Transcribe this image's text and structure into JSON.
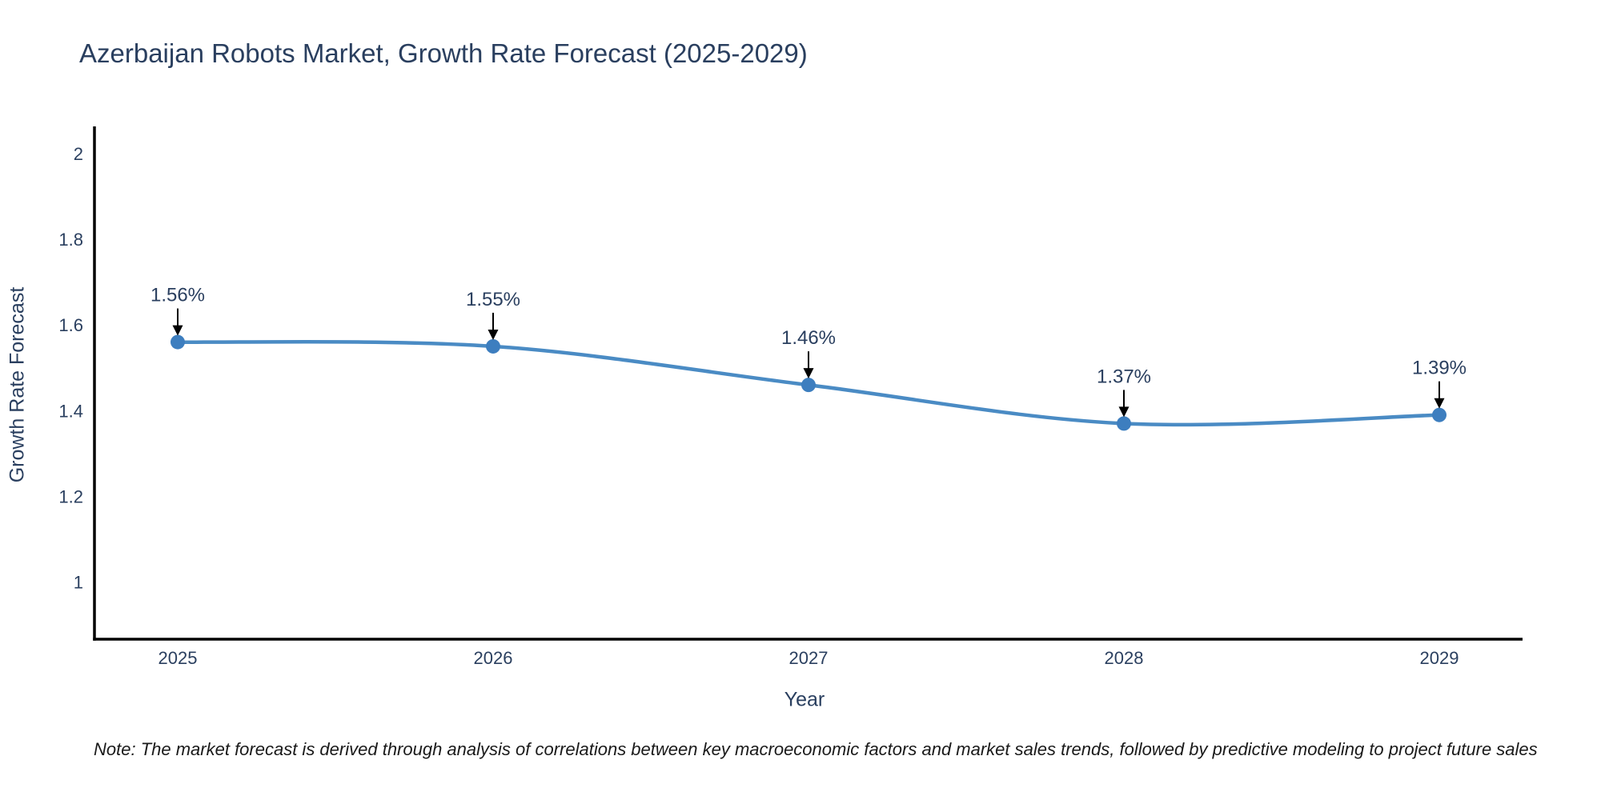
{
  "chart_data": {
    "type": "line",
    "title": "Azerbaijan Robots Market, Growth Rate Forecast (2025-2029)",
    "xlabel": "Year",
    "ylabel": "Growth Rate Forecast",
    "categories": [
      "2025",
      "2026",
      "2027",
      "2028",
      "2029"
    ],
    "series": [
      {
        "name": "Growth Rate Forecast",
        "values": [
          1.56,
          1.55,
          1.46,
          1.37,
          1.39
        ]
      }
    ],
    "point_labels": [
      "1.56%",
      "1.55%",
      "1.46%",
      "1.37%",
      "1.39%"
    ],
    "y_ticks": [
      "2",
      "1.8",
      "1.6",
      "1.4",
      "1.2",
      "1"
    ],
    "y_tick_values": [
      2,
      1.8,
      1.6,
      1.4,
      1.2,
      1
    ],
    "ylim": [
      0.867,
      2.063
    ],
    "grid": false,
    "legend_position": "none",
    "line_shape": "spline",
    "colors": {
      "line": "#4a8bc4",
      "marker": "#3d7ebf",
      "axis": "#000000",
      "text": "#2a3f5f",
      "tick_text": "#2a3f5f",
      "annotation_text": "#2a3f5f",
      "annotation_arrow": "#000000"
    }
  },
  "note": "Note: The market forecast is derived through analysis of correlations between key macroeconomic factors and market sales trends, followed by predictive modeling to project future sales"
}
